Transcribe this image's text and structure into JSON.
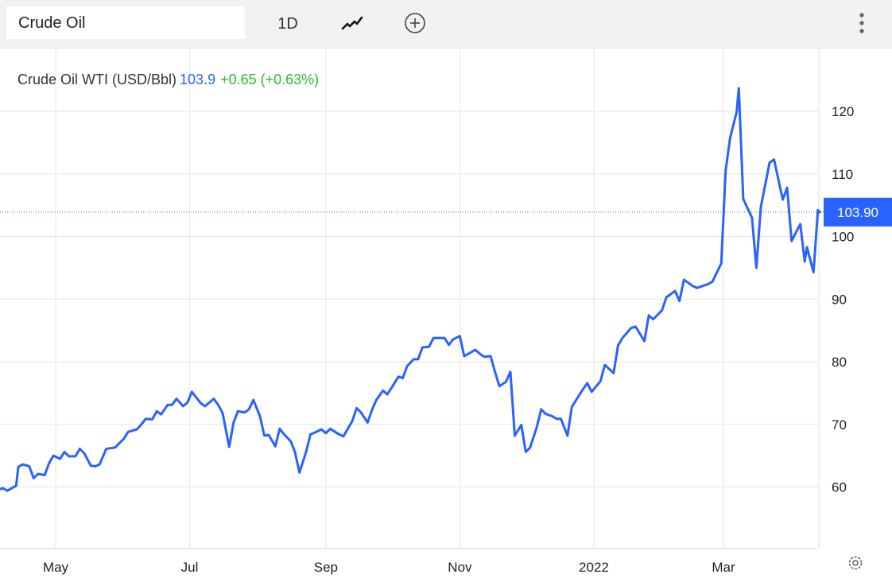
{
  "toolbar": {
    "search_value": "Crude Oil",
    "interval_label": "1D",
    "chart_type_icon": "line-chart-icon",
    "compare_icon": "add-circle-icon",
    "menu_icon": "more-vertical-icon"
  },
  "legend": {
    "name": "Crude Oil WTI (USD/Bbl)",
    "value": "103.9",
    "change": "+0.65 (+0.63%)"
  },
  "price_tag": "103.90",
  "colors": {
    "line": "#2962ff",
    "positive": "#2dbb2d",
    "grid": "#e6e6e6"
  },
  "chart_data": {
    "type": "line",
    "title": "",
    "xlabel": "",
    "ylabel": "",
    "ylim": [
      45,
      130
    ],
    "y_ticks": [
      60,
      70,
      80,
      90,
      100,
      110,
      120
    ],
    "x_ticks": [
      {
        "label": "May",
        "date": "2021-05-01"
      },
      {
        "label": "Jul",
        "date": "2021-07-01"
      },
      {
        "label": "Sep",
        "date": "2021-09-01"
      },
      {
        "label": "Nov",
        "date": "2021-11-01"
      },
      {
        "label": "2022",
        "date": "2022-01-01"
      },
      {
        "label": "Mar",
        "date": "2022-03-01"
      }
    ],
    "last_value": 103.9,
    "grid": true,
    "series": [
      {
        "points": [
          [
            "2021-04-05",
            59.6
          ],
          [
            "2021-04-07",
            59.8
          ],
          [
            "2021-04-09",
            59.4
          ],
          [
            "2021-04-13",
            60.2
          ],
          [
            "2021-04-14",
            63.2
          ],
          [
            "2021-04-16",
            63.6
          ],
          [
            "2021-04-19",
            63.3
          ],
          [
            "2021-04-21",
            61.4
          ],
          [
            "2021-04-23",
            62.1
          ],
          [
            "2021-04-26",
            61.9
          ],
          [
            "2021-04-28",
            63.8
          ],
          [
            "2021-04-30",
            65.0
          ],
          [
            "2021-05-03",
            64.5
          ],
          [
            "2021-05-05",
            65.6
          ],
          [
            "2021-05-07",
            64.9
          ],
          [
            "2021-05-10",
            64.9
          ],
          [
            "2021-05-12",
            66.1
          ],
          [
            "2021-05-14",
            65.4
          ],
          [
            "2021-05-17",
            63.4
          ],
          [
            "2021-05-19",
            63.3
          ],
          [
            "2021-05-21",
            63.6
          ],
          [
            "2021-05-24",
            66.1
          ],
          [
            "2021-05-26",
            66.2
          ],
          [
            "2021-05-28",
            66.3
          ],
          [
            "2021-06-01",
            67.7
          ],
          [
            "2021-06-03",
            68.8
          ],
          [
            "2021-06-07",
            69.2
          ],
          [
            "2021-06-09",
            70.0
          ],
          [
            "2021-06-11",
            70.9
          ],
          [
            "2021-06-14",
            70.8
          ],
          [
            "2021-06-16",
            72.1
          ],
          [
            "2021-06-18",
            71.6
          ],
          [
            "2021-06-21",
            73.1
          ],
          [
            "2021-06-23",
            73.1
          ],
          [
            "2021-06-25",
            74.1
          ],
          [
            "2021-06-28",
            72.9
          ],
          [
            "2021-06-30",
            73.5
          ],
          [
            "2021-07-02",
            75.2
          ],
          [
            "2021-07-06",
            73.4
          ],
          [
            "2021-07-08",
            72.9
          ],
          [
            "2021-07-12",
            74.1
          ],
          [
            "2021-07-14",
            73.1
          ],
          [
            "2021-07-16",
            71.8
          ],
          [
            "2021-07-19",
            66.4
          ],
          [
            "2021-07-21",
            70.3
          ],
          [
            "2021-07-23",
            72.1
          ],
          [
            "2021-07-26",
            71.9
          ],
          [
            "2021-07-28",
            72.4
          ],
          [
            "2021-07-30",
            73.9
          ],
          [
            "2021-08-02",
            71.3
          ],
          [
            "2021-08-04",
            68.2
          ],
          [
            "2021-08-06",
            68.3
          ],
          [
            "2021-08-09",
            66.5
          ],
          [
            "2021-08-11",
            69.3
          ],
          [
            "2021-08-13",
            68.4
          ],
          [
            "2021-08-16",
            67.3
          ],
          [
            "2021-08-18",
            65.5
          ],
          [
            "2021-08-20",
            62.3
          ],
          [
            "2021-08-23",
            65.6
          ],
          [
            "2021-08-25",
            68.4
          ],
          [
            "2021-08-27",
            68.7
          ],
          [
            "2021-08-30",
            69.2
          ],
          [
            "2021-09-01",
            68.6
          ],
          [
            "2021-09-03",
            69.3
          ],
          [
            "2021-09-07",
            68.4
          ],
          [
            "2021-09-09",
            68.1
          ],
          [
            "2021-09-13",
            70.5
          ],
          [
            "2021-09-15",
            72.6
          ],
          [
            "2021-09-17",
            71.9
          ],
          [
            "2021-09-20",
            70.3
          ],
          [
            "2021-09-22",
            72.3
          ],
          [
            "2021-09-24",
            73.9
          ],
          [
            "2021-09-27",
            75.4
          ],
          [
            "2021-09-29",
            74.8
          ],
          [
            "2021-10-01",
            75.9
          ],
          [
            "2021-10-04",
            77.6
          ],
          [
            "2021-10-06",
            77.4
          ],
          [
            "2021-10-08",
            79.3
          ],
          [
            "2021-10-11",
            80.4
          ],
          [
            "2021-10-13",
            80.4
          ],
          [
            "2021-10-15",
            82.3
          ],
          [
            "2021-10-18",
            82.4
          ],
          [
            "2021-10-20",
            83.8
          ],
          [
            "2021-10-22",
            83.8
          ],
          [
            "2021-10-25",
            83.8
          ],
          [
            "2021-10-27",
            82.7
          ],
          [
            "2021-10-29",
            83.6
          ],
          [
            "2021-11-01",
            84.1
          ],
          [
            "2021-11-03",
            80.9
          ],
          [
            "2021-11-05",
            81.3
          ],
          [
            "2021-11-08",
            81.9
          ],
          [
            "2021-11-10",
            81.3
          ],
          [
            "2021-11-12",
            80.8
          ],
          [
            "2021-11-15",
            80.9
          ],
          [
            "2021-11-17",
            78.4
          ],
          [
            "2021-11-19",
            76.1
          ],
          [
            "2021-11-22",
            76.8
          ],
          [
            "2021-11-24",
            78.4
          ],
          [
            "2021-11-26",
            68.2
          ],
          [
            "2021-11-29",
            69.9
          ],
          [
            "2021-12-01",
            65.6
          ],
          [
            "2021-12-03",
            66.3
          ],
          [
            "2021-12-06",
            69.5
          ],
          [
            "2021-12-08",
            72.4
          ],
          [
            "2021-12-10",
            71.7
          ],
          [
            "2021-12-13",
            71.3
          ],
          [
            "2021-12-15",
            70.9
          ],
          [
            "2021-12-17",
            70.9
          ],
          [
            "2021-12-20",
            68.2
          ],
          [
            "2021-12-22",
            72.8
          ],
          [
            "2021-12-27",
            75.6
          ],
          [
            "2021-12-29",
            76.6
          ],
          [
            "2021-12-31",
            75.2
          ],
          [
            "2022-01-04",
            76.9
          ],
          [
            "2022-01-06",
            79.5
          ],
          [
            "2022-01-10",
            78.2
          ],
          [
            "2022-01-12",
            82.6
          ],
          [
            "2022-01-14",
            83.8
          ],
          [
            "2022-01-18",
            85.4
          ],
          [
            "2022-01-20",
            85.6
          ],
          [
            "2022-01-24",
            83.3
          ],
          [
            "2022-01-26",
            87.4
          ],
          [
            "2022-01-28",
            86.8
          ],
          [
            "2022-02-01",
            88.2
          ],
          [
            "2022-02-03",
            90.3
          ],
          [
            "2022-02-07",
            91.3
          ],
          [
            "2022-02-09",
            89.7
          ],
          [
            "2022-02-11",
            93.1
          ],
          [
            "2022-02-15",
            92.1
          ],
          [
            "2022-02-17",
            91.8
          ],
          [
            "2022-02-22",
            92.4
          ],
          [
            "2022-02-24",
            92.8
          ],
          [
            "2022-02-28",
            95.7
          ],
          [
            "2022-03-02",
            110.6
          ],
          [
            "2022-03-04",
            115.7
          ],
          [
            "2022-03-07",
            119.9
          ],
          [
            "2022-03-08",
            123.7
          ],
          [
            "2022-03-10",
            106.0
          ],
          [
            "2022-03-14",
            103.0
          ],
          [
            "2022-03-16",
            95.0
          ],
          [
            "2022-03-18",
            104.7
          ],
          [
            "2022-03-22",
            111.8
          ],
          [
            "2022-03-24",
            112.3
          ],
          [
            "2022-03-28",
            105.9
          ],
          [
            "2022-03-30",
            107.8
          ],
          [
            "2022-04-01",
            99.3
          ],
          [
            "2022-04-05",
            102.0
          ],
          [
            "2022-04-07",
            96.0
          ],
          [
            "2022-04-08",
            98.3
          ],
          [
            "2022-04-11",
            94.3
          ],
          [
            "2022-04-13",
            104.2
          ],
          [
            "2022-04-14",
            103.9
          ]
        ]
      }
    ]
  }
}
